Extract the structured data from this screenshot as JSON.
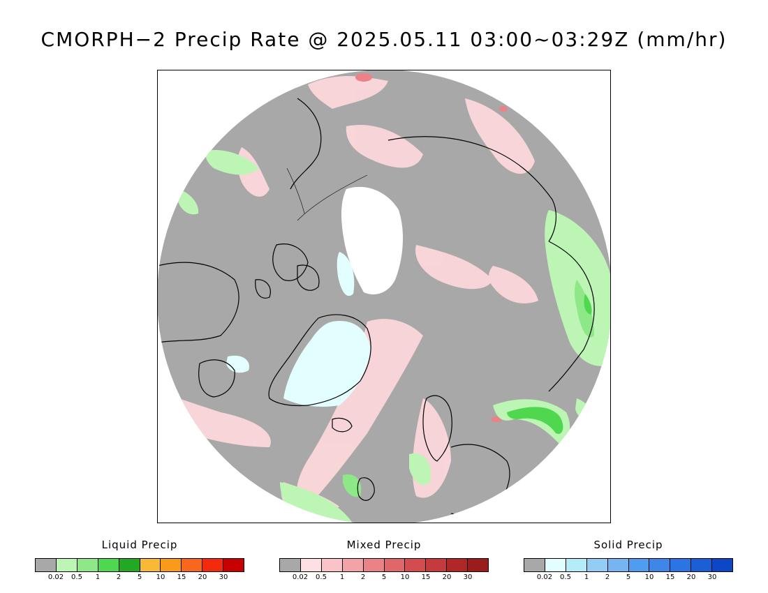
{
  "title": "CMORPH−2 Precip Rate @ 2025.05.11 03:00~03:29Z (mm/hr)",
  "map": {
    "projection": "north polar stereographic",
    "background_color": "#a8a8a8",
    "no_data_color": "#ffffff",
    "coastline_color": "#000000"
  },
  "legends": [
    {
      "title": "Liquid Precip",
      "ticks": [
        "0.02",
        "0.5",
        "1",
        "2",
        "5",
        "10",
        "15",
        "20",
        "30"
      ],
      "colors": [
        "#a8a8a8",
        "#bdf5b5",
        "#8ee887",
        "#4fd84f",
        "#22a822",
        "#f9b935",
        "#f99a1a",
        "#f9661e",
        "#f42a0c",
        "#c80000"
      ]
    },
    {
      "title": "Mixed Precip",
      "ticks": [
        "0.02",
        "0.5",
        "1",
        "2",
        "5",
        "10",
        "15",
        "20",
        "30"
      ],
      "colors": [
        "#a8a8a8",
        "#fde0e3",
        "#f9c3c8",
        "#f2a3a8",
        "#ea8288",
        "#df6669",
        "#d24c50",
        "#c53a3c",
        "#b02728",
        "#9b1c1d"
      ]
    },
    {
      "title": "Solid Precip",
      "ticks": [
        "0.02",
        "0.5",
        "1",
        "2",
        "5",
        "10",
        "15",
        "20",
        "30"
      ],
      "colors": [
        "#a8a8a8",
        "#e2feff",
        "#b4ecf8",
        "#93cdf6",
        "#75b6f2",
        "#4f9df0",
        "#3d87e9",
        "#2b74e4",
        "#1b5fd6",
        "#0c48c6"
      ]
    }
  ]
}
